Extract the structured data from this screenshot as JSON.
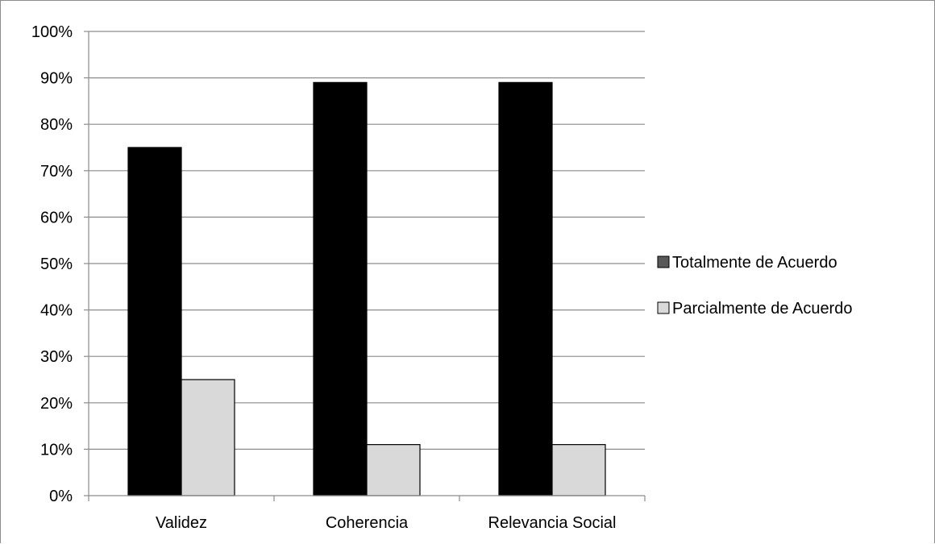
{
  "chart_data": {
    "type": "bar",
    "title": "",
    "xlabel": "",
    "ylabel": "",
    "categories": [
      "Validez",
      "Coherencia",
      "Relevancia Social"
    ],
    "series": [
      {
        "name": "Totalmente de Acuerdo",
        "values": [
          75,
          89,
          89
        ],
        "color": "#000000"
      },
      {
        "name": "Parcialmente de Acuerdo",
        "values": [
          25,
          11,
          11
        ],
        "color": "#d9d9d9"
      }
    ],
    "ylim": [
      0,
      100
    ],
    "y_ticks": [
      "0%",
      "10%",
      "20%",
      "30%",
      "40%",
      "50%",
      "60%",
      "70%",
      "80%",
      "90%",
      "100%"
    ],
    "grid": true,
    "legend_position": "right"
  }
}
